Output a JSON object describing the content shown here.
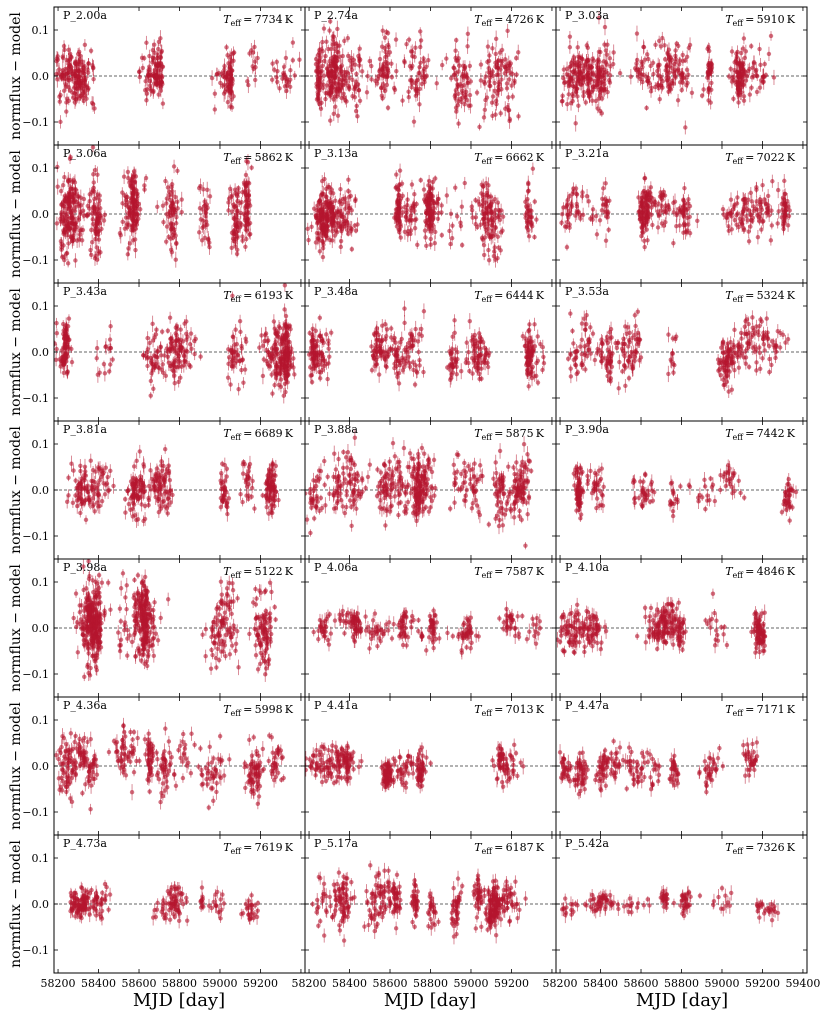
{
  "figure": {
    "ylabel": "normflux − model",
    "xlabel": "MJD [day]",
    "x_ticks": [
      "58200",
      "58400",
      "58600",
      "58800",
      "59000",
      "59200",
      "59400"
    ],
    "y_ticks": [
      "0.1",
      "0.0",
      "−0.1"
    ],
    "point_color": "#b5162f",
    "zero_line_color": "#333333"
  },
  "chart_data": {
    "type": "scatter",
    "xlabel": "MJD [day]",
    "ylabel": "normflux − model",
    "xlim": [
      58180,
      59420
    ],
    "ylim": [
      -0.15,
      0.15
    ],
    "grid": false,
    "layout": "7 rows × 3 columns, shared axes",
    "error_bars": true,
    "reference_line": "dashed horizontal at y = 0",
    "observing_seasons": [
      [
        58220,
        58450
      ],
      [
        58520,
        58840
      ],
      [
        58890,
        59330
      ]
    ],
    "panels": [
      {
        "label": "P_2.00a",
        "teff": "7734",
        "scatter": 0.05
      },
      {
        "label": "P_2.74a",
        "teff": "4726",
        "scatter": 0.07
      },
      {
        "label": "P_3.03a",
        "teff": "5910",
        "scatter": 0.055
      },
      {
        "label": "P_3.06a",
        "teff": "5862",
        "scatter": 0.075
      },
      {
        "label": "P_3.13a",
        "teff": "6662",
        "scatter": 0.06
      },
      {
        "label": "P_3.21a",
        "teff": "7022",
        "scatter": 0.045
      },
      {
        "label": "P_3.43a",
        "teff": "6193",
        "scatter": 0.06
      },
      {
        "label": "P_3.48a",
        "teff": "6444",
        "scatter": 0.05
      },
      {
        "label": "P_3.53a",
        "teff": "5324",
        "scatter": 0.05
      },
      {
        "label": "P_3.81a",
        "teff": "6689",
        "scatter": 0.05
      },
      {
        "label": "P_3.88a",
        "teff": "5875",
        "scatter": 0.06
      },
      {
        "label": "P_3.90a",
        "teff": "7442",
        "scatter": 0.035
      },
      {
        "label": "P_3.98a",
        "teff": "5122",
        "scatter": 0.08
      },
      {
        "label": "P_4.06a",
        "teff": "7587",
        "scatter": 0.025
      },
      {
        "label": "P_4.10a",
        "teff": "4846",
        "scatter": 0.04
      },
      {
        "label": "P_4.36a",
        "teff": "5998",
        "scatter": 0.055
      },
      {
        "label": "P_4.41a",
        "teff": "7013",
        "scatter": 0.03
      },
      {
        "label": "P_4.47a",
        "teff": "7171",
        "scatter": 0.035
      },
      {
        "label": "P_4.73a",
        "teff": "7619",
        "scatter": 0.025
      },
      {
        "label": "P_5.17a",
        "teff": "6187",
        "scatter": 0.045
      },
      {
        "label": "P_5.42a",
        "teff": "7326",
        "scatter": 0.02
      }
    ]
  }
}
